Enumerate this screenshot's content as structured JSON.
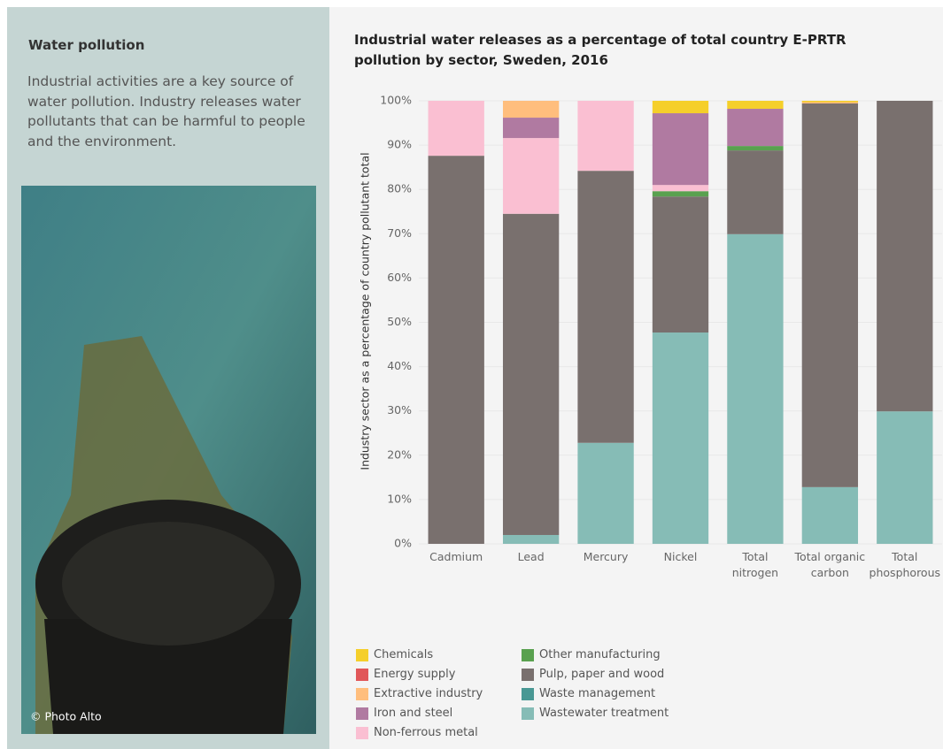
{
  "sidebar": {
    "title": "Water pollution",
    "text": "Industrial activities are a key source of water pollution. Industry releases water pollutants that can be harmful to people and the environment.",
    "credit": "© Photo Alto"
  },
  "chart_data": {
    "type": "stacked-bar",
    "title": "Industrial water releases as a percentage of total country E-PRTR pollution by sector, Sweden, 2016",
    "y_label": "Industry sector as a percentage of country pollutant total",
    "categories": [
      "Cadmium",
      "Lead",
      "Mercury",
      "Nickel",
      "Total nitrogen",
      "Total organic carbon",
      "Total phosphorous"
    ],
    "series": [
      {
        "name": "Chemicals",
        "color": "#f5cf2a",
        "values": [
          0,
          0,
          0,
          2.8,
          1.8,
          0.3,
          0
        ]
      },
      {
        "name": "Energy supply",
        "color": "#e15759",
        "values": [
          0,
          0,
          0,
          0,
          0,
          0,
          0
        ]
      },
      {
        "name": "Extractive industry",
        "color": "#ffbe7d",
        "values": [
          0,
          3.8,
          0,
          0,
          0,
          0.3,
          0
        ]
      },
      {
        "name": "Iron and steel",
        "color": "#b07aa1",
        "values": [
          0,
          4.6,
          0,
          16.2,
          8.4,
          0,
          0
        ]
      },
      {
        "name": "Non-ferrous metal",
        "color": "#fabfd2",
        "values": [
          12.4,
          17.1,
          15.8,
          1.4,
          0,
          0,
          0
        ]
      },
      {
        "name": "Other manufacturing",
        "color": "#59a14f",
        "values": [
          0,
          0,
          0,
          1.2,
          1.0,
          0,
          0
        ]
      },
      {
        "name": "Pulp, paper and wood",
        "color": "#79706e",
        "values": [
          87.6,
          72.5,
          61.4,
          30.7,
          18.9,
          86.6,
          70.1
        ]
      },
      {
        "name": "Waste management",
        "color": "#499894",
        "values": [
          0,
          0,
          0,
          0,
          0,
          0,
          0
        ]
      },
      {
        "name": "Wastewater treatment",
        "color": "#86bcb6",
        "values": [
          0,
          2.0,
          22.8,
          47.7,
          69.9,
          12.8,
          29.9
        ]
      }
    ],
    "ylim": [
      0,
      100
    ],
    "yticks": [
      {
        "value": 0,
        "label": "0%"
      },
      {
        "value": 10,
        "label": "10%"
      },
      {
        "value": 20,
        "label": "20%"
      },
      {
        "value": 30,
        "label": "30%"
      },
      {
        "value": 40,
        "label": "40%"
      },
      {
        "value": 50,
        "label": "50%"
      },
      {
        "value": 60,
        "label": "60%"
      },
      {
        "value": 70,
        "label": "70%"
      },
      {
        "value": 80,
        "label": "80%"
      },
      {
        "value": 90,
        "label": "90%"
      },
      {
        "value": 100,
        "label": "100%"
      }
    ],
    "grid": true
  }
}
